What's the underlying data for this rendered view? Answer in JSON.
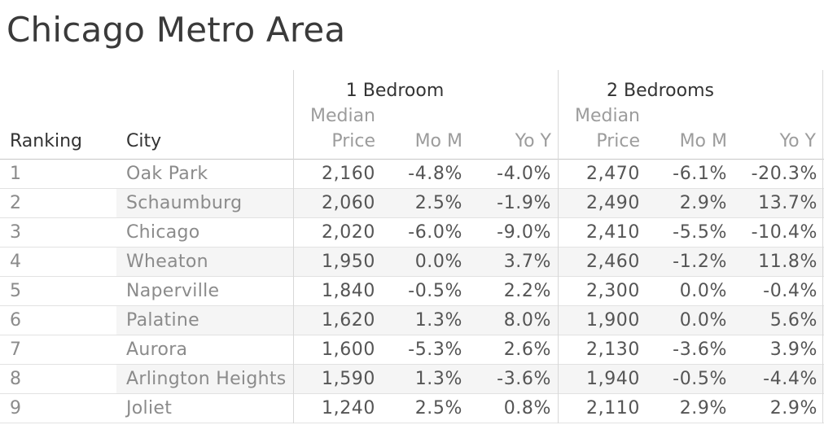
{
  "chart_data": {
    "type": "table",
    "title": "Chicago Metro Area",
    "groups": [
      {
        "label": "1 Bedroom"
      },
      {
        "label": "2 Bedrooms"
      }
    ],
    "columns": {
      "ranking": "Ranking",
      "city": "City",
      "median": "Median",
      "price": "Price",
      "mom": "Mo M",
      "yoy": "Yo Y"
    },
    "rows": [
      {
        "ranking": "1",
        "city": "Oak Park",
        "b1_price": "2,160",
        "b1_mom": "-4.8%",
        "b1_yoy": "-4.0%",
        "b2_price": "2,470",
        "b2_mom": "-6.1%",
        "b2_yoy": "-20.3%"
      },
      {
        "ranking": "2",
        "city": "Schaumburg",
        "b1_price": "2,060",
        "b1_mom": "2.5%",
        "b1_yoy": "-1.9%",
        "b2_price": "2,490",
        "b2_mom": "2.9%",
        "b2_yoy": "13.7%"
      },
      {
        "ranking": "3",
        "city": "Chicago",
        "b1_price": "2,020",
        "b1_mom": "-6.0%",
        "b1_yoy": "-9.0%",
        "b2_price": "2,410",
        "b2_mom": "-5.5%",
        "b2_yoy": "-10.4%"
      },
      {
        "ranking": "4",
        "city": "Wheaton",
        "b1_price": "1,950",
        "b1_mom": "0.0%",
        "b1_yoy": "3.7%",
        "b2_price": "2,460",
        "b2_mom": "-1.2%",
        "b2_yoy": "11.8%"
      },
      {
        "ranking": "5",
        "city": "Naperville",
        "b1_price": "1,840",
        "b1_mom": "-0.5%",
        "b1_yoy": "2.2%",
        "b2_price": "2,300",
        "b2_mom": "0.0%",
        "b2_yoy": "-0.4%"
      },
      {
        "ranking": "6",
        "city": "Palatine",
        "b1_price": "1,620",
        "b1_mom": "1.3%",
        "b1_yoy": "8.0%",
        "b2_price": "1,900",
        "b2_mom": "0.0%",
        "b2_yoy": "5.6%"
      },
      {
        "ranking": "7",
        "city": "Aurora",
        "b1_price": "1,600",
        "b1_mom": "-5.3%",
        "b1_yoy": "2.6%",
        "b2_price": "2,130",
        "b2_mom": "-3.6%",
        "b2_yoy": "3.9%"
      },
      {
        "ranking": "8",
        "city": "Arlington Heights",
        "b1_price": "1,590",
        "b1_mom": "1.3%",
        "b1_yoy": "-3.6%",
        "b2_price": "1,940",
        "b2_mom": "-0.5%",
        "b2_yoy": "-4.4%"
      },
      {
        "ranking": "9",
        "city": "Joliet",
        "b1_price": "1,240",
        "b1_mom": "2.5%",
        "b1_yoy": "0.8%",
        "b2_price": "2,110",
        "b2_mom": "2.9%",
        "b2_yoy": "2.9%"
      }
    ],
    "layout_hints": {
      "banded_rows": "2,4,6,8",
      "value_alignment": "right"
    }
  },
  "colors": {
    "title_text": "#3a3a3a",
    "header_text": "#333333",
    "subheader_text": "#9c9c9c",
    "dimension_text": "#8b8b8b",
    "value_text": "#555555",
    "row_band": "#f5f5f5",
    "row_border": "#e2e2e2",
    "header_border": "#c8c8c8",
    "divider": "#d8d8d8"
  }
}
